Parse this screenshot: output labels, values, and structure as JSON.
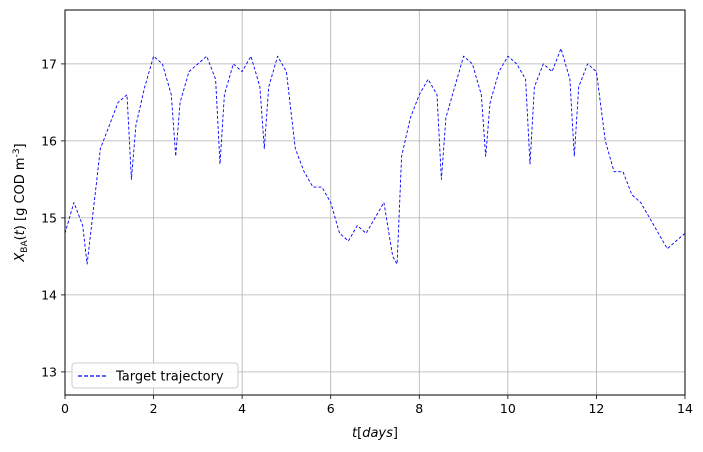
{
  "chart_data": {
    "type": "line",
    "xlabel": "t[days]",
    "ylabel": "X_BA(t) [g COD m^-3]",
    "xlim": [
      0,
      14
    ],
    "ylim": [
      12.7,
      17.7
    ],
    "x_ticks": [
      0,
      2,
      4,
      6,
      8,
      10,
      12,
      14
    ],
    "y_ticks": [
      13,
      14,
      15,
      16,
      17
    ],
    "x_tick_labels": [
      "0",
      "2",
      "4",
      "6",
      "8",
      "10",
      "12",
      "14"
    ],
    "y_tick_labels": [
      "13",
      "14",
      "15",
      "16",
      "17"
    ],
    "grid": true,
    "legend": {
      "position": "lower-left",
      "entries": [
        "Target trajectory"
      ]
    },
    "series": [
      {
        "name": "Target trajectory",
        "style": "dashed",
        "color": "#0000ff",
        "x": [
          0,
          0.2,
          0.4,
          0.5,
          0.8,
          1.0,
          1.2,
          1.4,
          1.5,
          1.6,
          1.8,
          2.0,
          2.2,
          2.4,
          2.5,
          2.6,
          2.8,
          3.0,
          3.2,
          3.4,
          3.5,
          3.6,
          3.8,
          4.0,
          4.2,
          4.4,
          4.5,
          4.6,
          4.8,
          5.0,
          5.2,
          5.4,
          5.6,
          5.8,
          6.0,
          6.2,
          6.4,
          6.6,
          6.8,
          7.0,
          7.2,
          7.4,
          7.5,
          7.6,
          7.8,
          8.0,
          8.2,
          8.4,
          8.5,
          8.6,
          8.8,
          9.0,
          9.2,
          9.4,
          9.5,
          9.6,
          9.8,
          10.0,
          10.2,
          10.4,
          10.5,
          10.6,
          10.8,
          11.0,
          11.2,
          11.4,
          11.5,
          11.6,
          11.8,
          12.0,
          12.2,
          12.4,
          12.6,
          12.8,
          13.0,
          13.2,
          13.4,
          13.6,
          13.8,
          14.0
        ],
        "y": [
          14.8,
          15.2,
          14.9,
          14.4,
          15.9,
          16.2,
          16.5,
          16.6,
          15.5,
          16.2,
          16.7,
          17.1,
          17.0,
          16.6,
          15.8,
          16.5,
          16.9,
          17.0,
          17.1,
          16.8,
          15.7,
          16.6,
          17.0,
          16.9,
          17.1,
          16.7,
          15.9,
          16.7,
          17.1,
          16.9,
          15.9,
          15.6,
          15.4,
          15.4,
          15.2,
          14.8,
          14.7,
          14.9,
          14.8,
          15.0,
          15.2,
          14.5,
          14.4,
          15.8,
          16.3,
          16.6,
          16.8,
          16.6,
          15.5,
          16.3,
          16.7,
          17.1,
          17.0,
          16.6,
          15.8,
          16.5,
          16.9,
          17.1,
          17.0,
          16.8,
          15.7,
          16.7,
          17.0,
          16.9,
          17.2,
          16.8,
          15.8,
          16.7,
          17.0,
          16.9,
          16.0,
          15.6,
          15.6,
          15.3,
          15.2,
          15.0,
          14.8,
          14.6,
          14.7,
          14.8
        ]
      }
    ]
  }
}
